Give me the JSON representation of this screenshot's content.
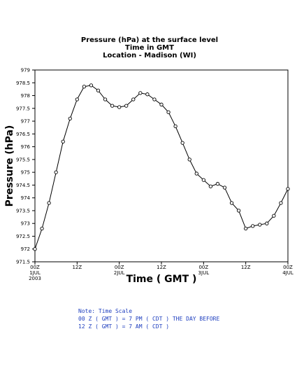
{
  "chart_data": {
    "type": "line",
    "title": [
      "Pressure (hPa) at the surface level",
      "Time in GMT",
      "Location - Madison (WI)"
    ],
    "xlabel": "Time ( GMT )",
    "ylabel": "Pressure (hPa)",
    "xlim_hours": [
      0,
      72
    ],
    "ylim": [
      971.5,
      979
    ],
    "yticks": [
      971.5,
      972,
      972.5,
      973,
      973.5,
      974,
      974.5,
      975,
      975.5,
      976,
      976.5,
      977,
      977.5,
      978,
      978.5,
      979
    ],
    "ytick_labels": [
      "971.5",
      "972",
      "972.5",
      "973",
      "973.5",
      "974",
      "974.5",
      "975",
      "975.5",
      "976",
      "976.5",
      "977",
      "977.5",
      "978",
      "978.5",
      "979"
    ],
    "xticks": [
      {
        "hour": 0,
        "lines": [
          "00Z",
          "1JUL",
          "2003"
        ]
      },
      {
        "hour": 12,
        "lines": [
          "12Z"
        ]
      },
      {
        "hour": 24,
        "lines": [
          "00Z",
          "2JUL"
        ]
      },
      {
        "hour": 36,
        "lines": [
          "12Z"
        ]
      },
      {
        "hour": 48,
        "lines": [
          "00Z",
          "3JUL"
        ]
      },
      {
        "hour": 60,
        "lines": [
          "12Z"
        ]
      },
      {
        "hour": 72,
        "lines": [
          "00Z",
          "4JUL"
        ]
      }
    ],
    "x_hours": [
      0,
      2,
      4,
      6,
      8,
      10,
      12,
      14,
      16,
      18,
      20,
      22,
      24,
      26,
      28,
      30,
      32,
      34,
      36,
      38,
      40,
      42,
      44,
      46,
      48,
      50,
      52,
      54,
      56,
      58,
      60,
      62,
      64,
      66,
      68,
      70,
      72
    ],
    "values": [
      972.0,
      972.8,
      973.8,
      975.0,
      976.2,
      977.1,
      977.85,
      978.35,
      978.4,
      978.2,
      977.85,
      977.6,
      977.55,
      977.6,
      977.85,
      978.1,
      978.05,
      977.85,
      977.65,
      977.35,
      976.8,
      976.15,
      975.5,
      974.95,
      974.7,
      974.45,
      974.55,
      974.4,
      973.8,
      973.5,
      972.8,
      972.9,
      972.95,
      973.0,
      973.3,
      973.8,
      974.35
    ],
    "grid": false,
    "line_color": "#000000",
    "marker": "open-circle"
  },
  "note": {
    "lines": [
      "Note: Time Scale",
      "00 Z ( GMT ) = 7 PM ( CDT ) THE DAY BEFORE",
      "12 Z ( GMT ) = 7 AM ( CDT )"
    ],
    "color": "#1f3fbf"
  }
}
